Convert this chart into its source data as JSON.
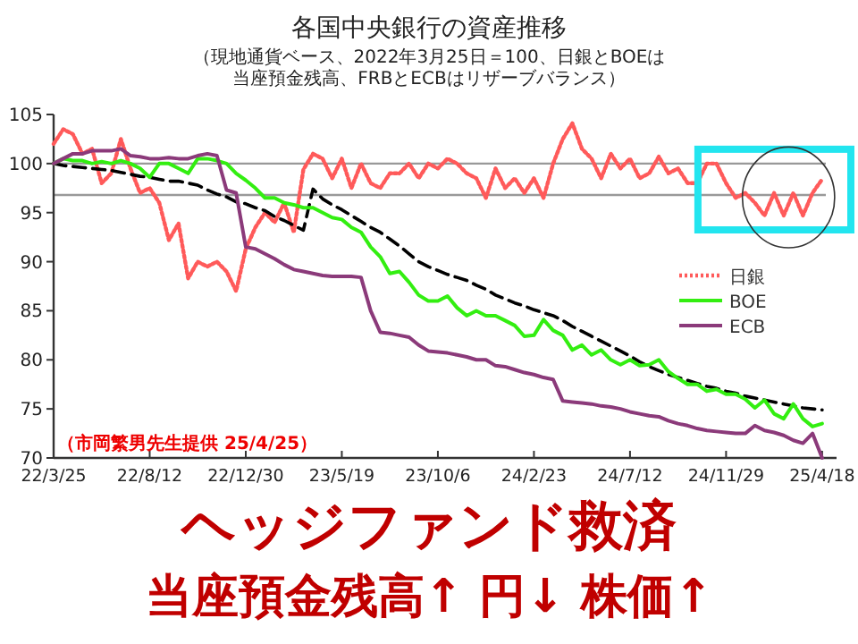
{
  "chart_data": {
    "type": "line",
    "title": "各国中央銀行の資産推移",
    "subtitle": "（現地通貨ベース、2022年3月25日＝100、日銀とBOEは当座預金残高、FRBとECBはリザーブバランス）",
    "x": [
      "2022-03-25",
      "2022-04-08",
      "2022-04-22",
      "2022-05-06",
      "2022-05-20",
      "2022-06-03",
      "2022-06-17",
      "2022-07-01",
      "2022-07-15",
      "2022-07-29",
      "2022-08-12",
      "2022-08-26",
      "2022-09-09",
      "2022-09-23",
      "2022-10-07",
      "2022-10-21",
      "2022-11-04",
      "2022-11-18",
      "2022-12-02",
      "2022-12-16",
      "2022-12-30",
      "2023-01-13",
      "2023-01-27",
      "2023-02-10",
      "2023-02-24",
      "2023-03-10",
      "2023-03-24",
      "2023-04-07",
      "2023-04-21",
      "2023-05-05",
      "2023-05-19",
      "2023-06-02",
      "2023-06-16",
      "2023-06-30",
      "2023-07-14",
      "2023-07-28",
      "2023-08-11",
      "2023-08-25",
      "2023-09-08",
      "2023-09-22",
      "2023-10-06",
      "2023-10-20",
      "2023-11-03",
      "2023-11-17",
      "2023-12-01",
      "2023-12-15",
      "2023-12-29",
      "2024-01-12",
      "2024-01-26",
      "2024-02-09",
      "2024-02-23",
      "2024-03-08",
      "2024-03-22",
      "2024-04-05",
      "2024-04-19",
      "2024-05-03",
      "2024-05-17",
      "2024-05-31",
      "2024-06-14",
      "2024-06-28",
      "2024-07-12",
      "2024-07-26",
      "2024-08-09",
      "2024-08-23",
      "2024-09-06",
      "2024-09-20",
      "2024-10-04",
      "2024-10-18",
      "2024-11-01",
      "2024-11-15",
      "2024-11-29",
      "2024-12-13",
      "2024-12-27",
      "2025-01-10",
      "2025-01-24",
      "2025-02-07",
      "2025-02-21",
      "2025-03-07",
      "2025-03-21",
      "2025-04-04",
      "2025-04-18"
    ],
    "series": [
      {
        "name": "日銀",
        "color": "#ff5a5a",
        "line_style": "dotted",
        "values": [
          102,
          103.5,
          103,
          101,
          101.5,
          98,
          99,
          102.5,
          99.5,
          97,
          97.5,
          96,
          92.2,
          93.9,
          88.3,
          90,
          89.5,
          90,
          89,
          87,
          91.3,
          93.5,
          95,
          94,
          96,
          93,
          99.4,
          101,
          100.5,
          98.5,
          100.5,
          97.5,
          100,
          98,
          97.5,
          99,
          99,
          100,
          98.5,
          100,
          99.5,
          100.5,
          100,
          99,
          98.5,
          96.5,
          99.5,
          97.5,
          98.5,
          97,
          98.5,
          96.5,
          100,
          102.5,
          104.1,
          101.5,
          100.5,
          98.5,
          101,
          99.5,
          100.5,
          98.5,
          99,
          100.7,
          99,
          99.5,
          98,
          98,
          100,
          100,
          98,
          96.5,
          97,
          96,
          94.7,
          97,
          94.7,
          97,
          94.7,
          97,
          98.4
        ]
      },
      {
        "color": "#000000",
        "line_style": "dashed",
        "values": [
          100,
          99.8,
          99.7,
          99.6,
          99.5,
          99.4,
          99.3,
          99.1,
          98.9,
          98.7,
          98.6,
          98.4,
          98.2,
          98.2,
          98,
          97.8,
          97.3,
          96.9,
          96.6,
          96.1,
          95.9,
          95.5,
          95.2,
          94.6,
          94.2,
          93.7,
          93.2,
          97.4,
          96.4,
          95.8,
          95.3,
          94.7,
          94.1,
          93.5,
          93,
          92.3,
          91.6,
          90.8,
          90,
          89.5,
          89.1,
          88.7,
          88.4,
          88.1,
          87.6,
          87.2,
          86.6,
          86.2,
          85.8,
          85.5,
          85.1,
          84.8,
          84.5,
          84,
          83.4,
          82.9,
          82.4,
          81.9,
          81.4,
          80.9,
          80.4,
          79.8,
          79.3,
          78.9,
          78.5,
          78.2,
          77.9,
          77.6,
          77.3,
          77.1,
          76.8,
          76.6,
          76.3,
          76.1,
          75.9,
          75.7,
          75.5,
          75.3,
          75.1,
          75,
          74.9
        ]
      },
      {
        "name": "BOE",
        "color": "#33ee11",
        "line_style": "solid",
        "values": [
          100,
          100.5,
          100.3,
          100.3,
          100,
          100.2,
          100,
          100.3,
          100,
          99.5,
          98.6,
          100,
          100,
          99.5,
          99,
          100.5,
          100.5,
          100.3,
          100,
          99,
          98.3,
          97.5,
          96.5,
          96.5,
          96,
          95.8,
          95.5,
          95.5,
          95,
          94.5,
          94.3,
          93.5,
          93,
          91.5,
          90.5,
          88.8,
          89,
          87.9,
          86.6,
          86,
          86,
          86.5,
          85.3,
          84.5,
          85,
          84.5,
          84.5,
          84,
          83.5,
          82.4,
          82.5,
          84.1,
          83,
          82.5,
          81,
          81.5,
          80.5,
          81,
          80,
          79.5,
          80,
          79.4,
          79.5,
          80,
          78.8,
          78.1,
          77.5,
          77.5,
          76.8,
          77,
          76.5,
          76.5,
          76,
          75.1,
          75.9,
          74.5,
          74,
          75.5,
          74,
          73.2,
          73.5
        ]
      },
      {
        "name": "ECB",
        "color": "#8b3a7a",
        "line_style": "solid",
        "values": [
          100,
          100.5,
          101,
          101,
          101.3,
          101.3,
          101.3,
          101.5,
          100.8,
          100.7,
          100.5,
          100.5,
          100.6,
          100.5,
          100.5,
          100.8,
          101,
          100.8,
          97.3,
          97,
          91.5,
          91.3,
          90.8,
          90.3,
          89.7,
          89.2,
          89,
          88.8,
          88.6,
          88.5,
          88.5,
          88.5,
          88.4,
          85,
          82.8,
          82.7,
          82.5,
          82.3,
          81.5,
          80.9,
          80.8,
          80.7,
          80.5,
          80.3,
          80,
          80,
          79.4,
          79.3,
          79,
          78.7,
          78.5,
          78.2,
          78,
          75.8,
          75.7,
          75.6,
          75.5,
          75.3,
          75.2,
          75,
          74.7,
          74.5,
          74.3,
          74.2,
          73.8,
          73.5,
          73.3,
          73,
          72.8,
          72.7,
          72.6,
          72.5,
          72.5,
          73.3,
          72.8,
          72.6,
          72.3,
          71.8,
          71.5,
          72.5,
          70
        ]
      }
    ],
    "xlim": [
      "2022-03-25",
      "2025-05-09"
    ],
    "xticks": [
      {
        "value": "2022-03-25",
        "label": "22/3/25"
      },
      {
        "value": "2022-08-12",
        "label": "22/8/12"
      },
      {
        "value": "2022-12-30",
        "label": "22/12/30"
      },
      {
        "value": "2023-05-19",
        "label": "23/5/19"
      },
      {
        "value": "2023-10-06",
        "label": "23/10/6"
      },
      {
        "value": "2024-02-23",
        "label": "24/2/23"
      },
      {
        "value": "2024-07-12",
        "label": "24/7/12"
      },
      {
        "value": "2024-11-29",
        "label": "24/11/29"
      },
      {
        "value": "2025-04-18",
        "label": "25/4/18"
      }
    ],
    "ylim": [
      70,
      105
    ],
    "yticks": [
      70,
      75,
      80,
      85,
      90,
      95,
      100,
      105
    ],
    "ref_lines": [
      {
        "axis": "y",
        "value": 100,
        "color": "#999999"
      },
      {
        "axis": "y",
        "value": 96.8,
        "color": "#999999"
      }
    ],
    "legend": "right",
    "annotations": [
      "ヘッジファンド救済",
      "当座預金残高↑ 円↓ 株価↑",
      "（市岡繁男先生提供 25/4/25）"
    ]
  }
}
